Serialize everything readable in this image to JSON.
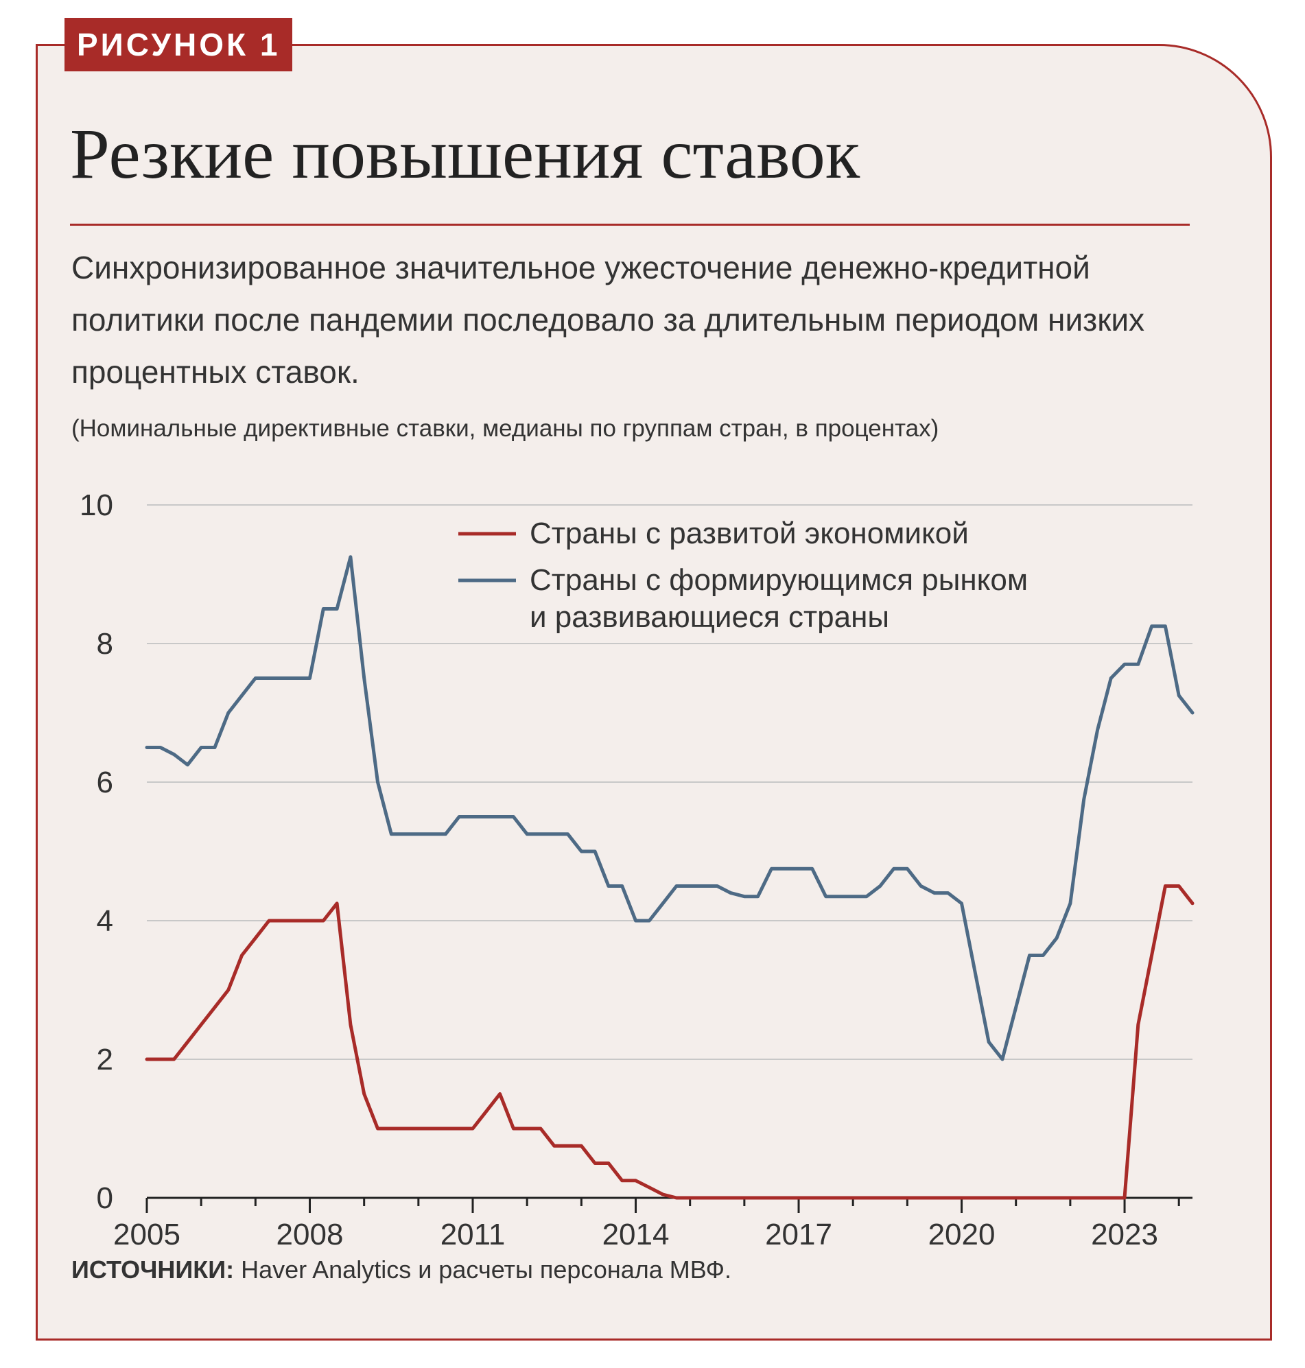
{
  "figure_label": "РИСУНОК 1",
  "title": "Резкие повышения ставок",
  "subtitle": "Синхронизированное значительное ужесточение денежно-кредитной политики после пандемии последовало за длительным периодом низких процентных ставок.",
  "units_note": "(Номинальные директивные ставки, медианы по группам стран, в процентах)",
  "sources": {
    "label": "ИСТОЧНИКИ:",
    "text": "Haver Analytics и расчеты персонала МВФ."
  },
  "colors": {
    "advanced": "#a82b28",
    "emerging": "#4d6a85",
    "grid": "#c8c8c8",
    "axis": "#222222"
  },
  "chart_data": {
    "type": "line",
    "title": "Резкие повышения ставок",
    "xlabel": "",
    "ylabel": "",
    "xlim": [
      2005,
      2024.25
    ],
    "ylim": [
      0,
      10
    ],
    "yticks": [
      0,
      2,
      4,
      6,
      8,
      10
    ],
    "xticks": [
      2005,
      2008,
      2011,
      2014,
      2017,
      2020,
      2023
    ],
    "grid": true,
    "legend_position": "top-center",
    "x": [
      2005.0,
      2005.25,
      2005.5,
      2005.75,
      2006.0,
      2006.25,
      2006.5,
      2006.75,
      2007.0,
      2007.25,
      2007.5,
      2007.75,
      2008.0,
      2008.25,
      2008.5,
      2008.75,
      2009.0,
      2009.25,
      2009.5,
      2009.75,
      2010.0,
      2010.25,
      2010.5,
      2010.75,
      2011.0,
      2011.25,
      2011.5,
      2011.75,
      2012.0,
      2012.25,
      2012.5,
      2012.75,
      2013.0,
      2013.25,
      2013.5,
      2013.75,
      2014.0,
      2014.25,
      2014.5,
      2014.75,
      2015.0,
      2015.25,
      2015.5,
      2015.75,
      2016.0,
      2016.25,
      2016.5,
      2016.75,
      2017.0,
      2017.25,
      2017.5,
      2017.75,
      2018.0,
      2018.25,
      2018.5,
      2018.75,
      2019.0,
      2019.25,
      2019.5,
      2019.75,
      2020.0,
      2020.25,
      2020.5,
      2020.75,
      2021.0,
      2021.25,
      2021.5,
      2021.75,
      2022.0,
      2022.25,
      2022.5,
      2022.75,
      2023.0,
      2023.25,
      2023.5,
      2023.75,
      2024.0,
      2024.25
    ],
    "series": [
      {
        "name": "Страны с развитой экономикой",
        "values": [
          2.0,
          2.0,
          2.0,
          2.25,
          2.5,
          2.75,
          3.0,
          3.5,
          3.75,
          4.0,
          4.0,
          4.0,
          4.0,
          4.0,
          4.25,
          2.5,
          1.5,
          1.0,
          1.0,
          1.0,
          1.0,
          1.0,
          1.0,
          1.0,
          1.0,
          1.25,
          1.5,
          1.0,
          1.0,
          1.0,
          0.75,
          0.75,
          0.75,
          0.5,
          0.5,
          0.25,
          0.25,
          0.15,
          0.05,
          0.0,
          0.0,
          0.0,
          0.0,
          0.0,
          0.0,
          0.0,
          0.0,
          0.0,
          0.0,
          0.0,
          0.0,
          0.0,
          0.0,
          0.0,
          0.0,
          0.0,
          0.0,
          0.0,
          0.0,
          0.0,
          0.0,
          0.0,
          0.0,
          0.0,
          0.0,
          0.0,
          0.0,
          0.0,
          0.0,
          0.0,
          0.0,
          0.0,
          0.0,
          2.5,
          3.5,
          4.5,
          4.5,
          4.25
        ]
      },
      {
        "name": "Страны с формирующимся рынком и развивающиеся страны",
        "values": [
          6.5,
          6.5,
          6.4,
          6.25,
          6.5,
          6.5,
          7.0,
          7.25,
          7.5,
          7.5,
          7.5,
          7.5,
          7.5,
          8.5,
          8.5,
          9.25,
          7.5,
          6.0,
          5.25,
          5.25,
          5.25,
          5.25,
          5.25,
          5.5,
          5.5,
          5.5,
          5.5,
          5.5,
          5.25,
          5.25,
          5.25,
          5.25,
          5.0,
          5.0,
          4.5,
          4.5,
          4.0,
          4.0,
          4.25,
          4.5,
          4.5,
          4.5,
          4.5,
          4.4,
          4.35,
          4.35,
          4.75,
          4.75,
          4.75,
          4.75,
          4.35,
          4.35,
          4.35,
          4.35,
          4.5,
          4.75,
          4.75,
          4.5,
          4.4,
          4.4,
          4.25,
          3.25,
          2.25,
          2.0,
          2.75,
          3.5,
          3.5,
          3.75,
          4.25,
          5.75,
          6.75,
          7.5,
          7.7,
          7.7,
          8.25,
          8.25,
          7.25,
          7.0
        ]
      }
    ]
  }
}
